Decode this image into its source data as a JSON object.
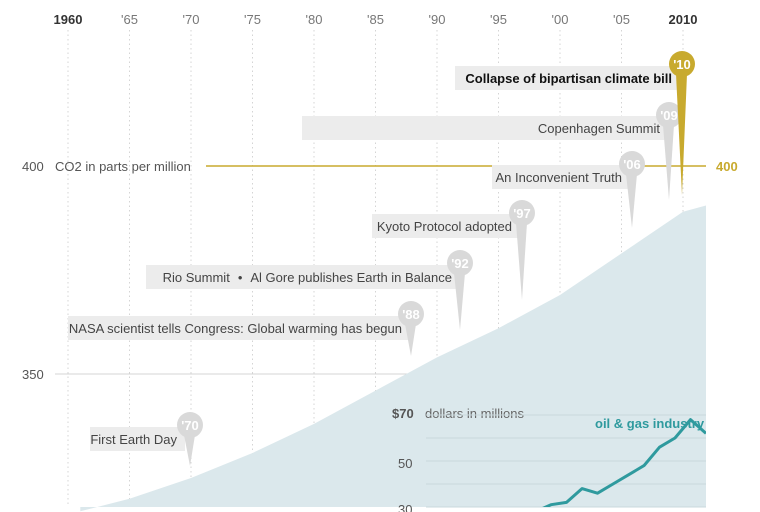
{
  "chart_data": {
    "type": "area",
    "x_ticks": [
      "1960",
      "'65",
      "'70",
      "'75",
      "'80",
      "'85",
      "'90",
      "'95",
      "'00",
      "'05",
      "2010"
    ],
    "x_range": [
      1960,
      2010
    ],
    "y_axis": {
      "label": "CO2 in parts per million",
      "ticks": [
        "400",
        "350"
      ],
      "reference_label": "400"
    },
    "co2_series": {
      "x": [
        1961,
        1965,
        1970,
        1975,
        1980,
        1985,
        1990,
        1995,
        2000,
        2005,
        2010
      ],
      "y": [
        317,
        320,
        325,
        331,
        338,
        346,
        354,
        361,
        369,
        379,
        389
      ]
    },
    "events": [
      {
        "year": 1970,
        "badge": "'70",
        "label": "First Earth Day"
      },
      {
        "year": 1988,
        "badge": "'88",
        "label": "NASA scientist tells Congress: Global warming has begun"
      },
      {
        "year": 1992,
        "badge": "'92",
        "label": "Rio Summit",
        "label2": "Al Gore publishes Earth in Balance"
      },
      {
        "year": 1997,
        "badge": "'97",
        "label": "Kyoto Protocol adopted"
      },
      {
        "year": 2006,
        "badge": "'06",
        "label": "An Inconvenient Truth"
      },
      {
        "year": 2009,
        "badge": "'09",
        "label": "Copenhagen Summit"
      },
      {
        "year": 2010,
        "badge": "'10",
        "label": "Collapse of bipartisan climate bill",
        "highlight": true
      }
    ],
    "inset": {
      "unit_label": "$70",
      "unit_desc": "dollars in millions",
      "y_ticks": [
        "50",
        "30"
      ],
      "series_name": "oil & gas industry",
      "x": [
        1998,
        1999,
        2000,
        2001,
        2002,
        2003,
        2004,
        2005,
        2006,
        2007,
        2008,
        2009,
        2010
      ],
      "y": [
        28,
        28,
        31,
        32,
        38,
        36,
        40,
        44,
        48,
        56,
        60,
        68,
        62
      ]
    },
    "colors": {
      "area": "#dbe8ec",
      "gold": "#c8aa2e",
      "inset_line": "#2f9a9e",
      "badge": "#d9d9d9",
      "label_bg": "#ececec",
      "grid": "#d4d4d4",
      "text": "#444444"
    }
  }
}
